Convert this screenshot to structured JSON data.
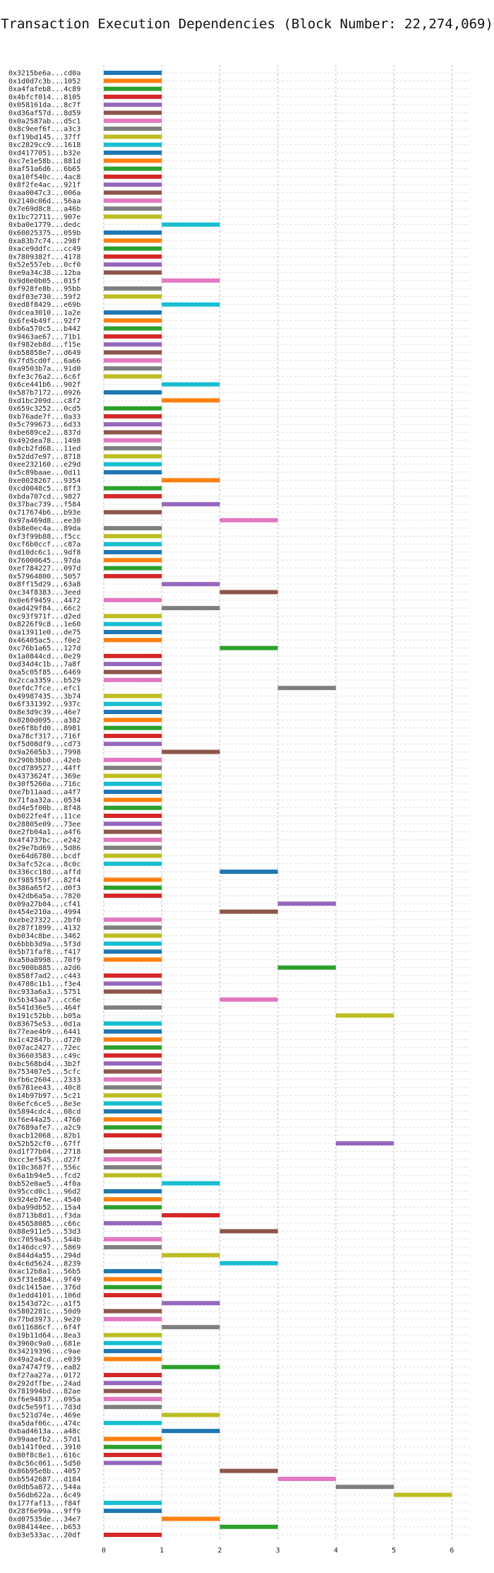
{
  "chart_data": {
    "type": "bar",
    "orientation": "horizontal",
    "title": "Transaction Execution Dependencies (Block Number: 22,274,069)",
    "xlabel": "",
    "ylabel": "",
    "xlim": [
      0,
      6.3
    ],
    "xticks": [
      0,
      1,
      2,
      3,
      4,
      5,
      6
    ],
    "grid": true,
    "legend": false,
    "palette": [
      "#1f77b4",
      "#ff7f0e",
      "#2ca02c",
      "#d62728",
      "#9467bd",
      "#8c564b",
      "#e377c2",
      "#7f7f7f",
      "#bcbd22",
      "#17becf"
    ],
    "transactions": [
      {
        "label": "0x3215be6a...cd0a",
        "start": 0,
        "end": 1
      },
      {
        "label": "0x1d0d7c3b...1052",
        "start": 0,
        "end": 1
      },
      {
        "label": "0xa4fafeb8...4c89",
        "start": 0,
        "end": 1
      },
      {
        "label": "0x4bfcf014...8105",
        "start": 0,
        "end": 1
      },
      {
        "label": "0x058161da...8c7f",
        "start": 0,
        "end": 1
      },
      {
        "label": "0xd36af57d...8d59",
        "start": 0,
        "end": 1
      },
      {
        "label": "0x0a2587ab...d5c1",
        "start": 0,
        "end": 1
      },
      {
        "label": "0x8c9eef6f...a3c3",
        "start": 0,
        "end": 1
      },
      {
        "label": "0xf19bd145...37ff",
        "start": 0,
        "end": 1
      },
      {
        "label": "0xc2829cc9...1618",
        "start": 0,
        "end": 1
      },
      {
        "label": "0xd4177051...b32e",
        "start": 0,
        "end": 1
      },
      {
        "label": "0xc7e1e58b...881d",
        "start": 0,
        "end": 1
      },
      {
        "label": "0xaf51a6d6...6b65",
        "start": 0,
        "end": 1
      },
      {
        "label": "0xa10f540c...4ac8",
        "start": 0,
        "end": 1
      },
      {
        "label": "0x8f2fe4ac...921f",
        "start": 0,
        "end": 1
      },
      {
        "label": "0xaa0047c3...006a",
        "start": 0,
        "end": 1
      },
      {
        "label": "0x2140c06d...56aa",
        "start": 0,
        "end": 1
      },
      {
        "label": "0x7e69d8c8...a46b",
        "start": 0,
        "end": 1
      },
      {
        "label": "0x1bc72711...907e",
        "start": 0,
        "end": 1
      },
      {
        "label": "0xba0e1779...dedc",
        "start": 1,
        "end": 2
      },
      {
        "label": "0x60025375...059b",
        "start": 0,
        "end": 1
      },
      {
        "label": "0xa83b7c74...298f",
        "start": 0,
        "end": 1
      },
      {
        "label": "0xace9ddfc...cc49",
        "start": 0,
        "end": 1
      },
      {
        "label": "0x7809382f...4178",
        "start": 0,
        "end": 1
      },
      {
        "label": "0x52e557eb...0cf0",
        "start": 0,
        "end": 1
      },
      {
        "label": "0xe9a34c38...12ba",
        "start": 0,
        "end": 1
      },
      {
        "label": "0x9d0e0b05...015f",
        "start": 1,
        "end": 2
      },
      {
        "label": "0xf928fe8b...95bb",
        "start": 0,
        "end": 1
      },
      {
        "label": "0xdf03e730...59f2",
        "start": 0,
        "end": 1
      },
      {
        "label": "0xed8f8429...e69b",
        "start": 1,
        "end": 2
      },
      {
        "label": "0xdcea3010...1a2e",
        "start": 0,
        "end": 1
      },
      {
        "label": "0x6fe4b49f...92f7",
        "start": 0,
        "end": 1
      },
      {
        "label": "0xb6a570c5...b442",
        "start": 0,
        "end": 1
      },
      {
        "label": "0x9463ae67...71b1",
        "start": 0,
        "end": 1
      },
      {
        "label": "0xf982eb8d...f15e",
        "start": 0,
        "end": 1
      },
      {
        "label": "0xb58858e7...d649",
        "start": 0,
        "end": 1
      },
      {
        "label": "0x7fd5cd0f...6a66",
        "start": 0,
        "end": 1
      },
      {
        "label": "0xa9503b7a...91d0",
        "start": 0,
        "end": 1
      },
      {
        "label": "0xfe3c76a2...6c6f",
        "start": 0,
        "end": 1
      },
      {
        "label": "0x6ce441b6...902f",
        "start": 1,
        "end": 2
      },
      {
        "label": "0x587b7172...0926",
        "start": 0,
        "end": 1
      },
      {
        "label": "0xd1bc209d...c8f2",
        "start": 1,
        "end": 2
      },
      {
        "label": "0x659c3252...0cd5",
        "start": 0,
        "end": 1
      },
      {
        "label": "0xb76ade7f...0a33",
        "start": 0,
        "end": 1
      },
      {
        "label": "0x5c799673...6d33",
        "start": 0,
        "end": 1
      },
      {
        "label": "0xbe689ce2...837d",
        "start": 0,
        "end": 1
      },
      {
        "label": "0x492dea78...1498",
        "start": 0,
        "end": 1
      },
      {
        "label": "0x8cb2fd68...11ed",
        "start": 0,
        "end": 1
      },
      {
        "label": "0x52dd7e97...8718",
        "start": 0,
        "end": 1
      },
      {
        "label": "0xee232160...e29d",
        "start": 0,
        "end": 1
      },
      {
        "label": "0x5c89baae...0d11",
        "start": 0,
        "end": 1
      },
      {
        "label": "0xe0028267...9354",
        "start": 1,
        "end": 2
      },
      {
        "label": "0xcd0048c5...8ff3",
        "start": 0,
        "end": 1
      },
      {
        "label": "0xbda707cd...9827",
        "start": 0,
        "end": 1
      },
      {
        "label": "0x37bac739...f584",
        "start": 1,
        "end": 2
      },
      {
        "label": "0x717674b6...b93e",
        "start": 0,
        "end": 1
      },
      {
        "label": "0x97a469d8...ee30",
        "start": 2,
        "end": 3
      },
      {
        "label": "0xb8e0ec4a...89da",
        "start": 0,
        "end": 1
      },
      {
        "label": "0xf3f99b88...f5cc",
        "start": 0,
        "end": 1
      },
      {
        "label": "0xcf6b0ccf...c87a",
        "start": 0,
        "end": 1
      },
      {
        "label": "0xd10dc6c1...9df8",
        "start": 0,
        "end": 1
      },
      {
        "label": "0x76000645...97da",
        "start": 0,
        "end": 1
      },
      {
        "label": "0xef784227...097d",
        "start": 0,
        "end": 1
      },
      {
        "label": "0x57964800...5057",
        "start": 0,
        "end": 1
      },
      {
        "label": "0x8ff15d29...63a8",
        "start": 1,
        "end": 2
      },
      {
        "label": "0xc34f8383...3eed",
        "start": 2,
        "end": 3
      },
      {
        "label": "0x0e6f9459...4472",
        "start": 0,
        "end": 1
      },
      {
        "label": "0xad429f84...66c2",
        "start": 1,
        "end": 2
      },
      {
        "label": "0xc93f971f...d2ed",
        "start": 0,
        "end": 1
      },
      {
        "label": "0x8226f9c8...1e60",
        "start": 0,
        "end": 1
      },
      {
        "label": "0xa13911e0...de75",
        "start": 0,
        "end": 1
      },
      {
        "label": "0x46405ac5...f0e2",
        "start": 0,
        "end": 1
      },
      {
        "label": "0xc76b1a65...127d",
        "start": 2,
        "end": 3
      },
      {
        "label": "0x1a0844cd...0e29",
        "start": 0,
        "end": 1
      },
      {
        "label": "0xd34d4c1b...7a8f",
        "start": 0,
        "end": 1
      },
      {
        "label": "0xa5c05f85...6469",
        "start": 0,
        "end": 1
      },
      {
        "label": "0x2cca3359...b529",
        "start": 0,
        "end": 1
      },
      {
        "label": "0xefdc7fce...efc1",
        "start": 3,
        "end": 4
      },
      {
        "label": "0x49987435...3b74",
        "start": 0,
        "end": 1
      },
      {
        "label": "0x6f331392...937c",
        "start": 0,
        "end": 1
      },
      {
        "label": "0x8e3d9c39...46e7",
        "start": 0,
        "end": 1
      },
      {
        "label": "0x8280d095...a382",
        "start": 0,
        "end": 1
      },
      {
        "label": "0xe6f8bfd0...8981",
        "start": 0,
        "end": 1
      },
      {
        "label": "0xa78cf317...716f",
        "start": 0,
        "end": 1
      },
      {
        "label": "0xf5d08df9...cd73",
        "start": 0,
        "end": 1
      },
      {
        "label": "0x9a2605b3...7998",
        "start": 1,
        "end": 2
      },
      {
        "label": "0x290b3bb0...42eb",
        "start": 0,
        "end": 1
      },
      {
        "label": "0xcd789527...44ff",
        "start": 0,
        "end": 1
      },
      {
        "label": "0x4373624f...369e",
        "start": 0,
        "end": 1
      },
      {
        "label": "0x30f5260a...716c",
        "start": 0,
        "end": 1
      },
      {
        "label": "0xe7b11aad...a4f7",
        "start": 0,
        "end": 1
      },
      {
        "label": "0x71faa32a...0534",
        "start": 0,
        "end": 1
      },
      {
        "label": "0xd4e5f00b...8f48",
        "start": 0,
        "end": 1
      },
      {
        "label": "0xb022fe4f...11ce",
        "start": 0,
        "end": 1
      },
      {
        "label": "0x28805e09...73ee",
        "start": 0,
        "end": 1
      },
      {
        "label": "0xe2fb04a1...a4f6",
        "start": 0,
        "end": 1
      },
      {
        "label": "0x4f4737bc...e242",
        "start": 0,
        "end": 1
      },
      {
        "label": "0x29e7bd69...5d86",
        "start": 0,
        "end": 1
      },
      {
        "label": "0xe64d6780...bcdf",
        "start": 0,
        "end": 1
      },
      {
        "label": "0x3afc52ca...8c0c",
        "start": 0,
        "end": 1
      },
      {
        "label": "0x336cc18d...affd",
        "start": 2,
        "end": 3
      },
      {
        "label": "0xf985f59f...82f4",
        "start": 0,
        "end": 1
      },
      {
        "label": "0x386a65f2...d0f3",
        "start": 0,
        "end": 1
      },
      {
        "label": "0x42db6a5a...7820",
        "start": 0,
        "end": 1
      },
      {
        "label": "0x09a27b04...cf41",
        "start": 3,
        "end": 4
      },
      {
        "label": "0x454e210a...4994",
        "start": 2,
        "end": 3
      },
      {
        "label": "0xebe27322...2bf0",
        "start": 0,
        "end": 1
      },
      {
        "label": "0x287f1899...4132",
        "start": 0,
        "end": 1
      },
      {
        "label": "0xb034c8be...3462",
        "start": 0,
        "end": 1
      },
      {
        "label": "0x6bbb3d9a...5f3d",
        "start": 0,
        "end": 1
      },
      {
        "label": "0x5b71faf8...f417",
        "start": 0,
        "end": 1
      },
      {
        "label": "0xa50a8998...70f9",
        "start": 0,
        "end": 1
      },
      {
        "label": "0xc900b885...a2d6",
        "start": 3,
        "end": 4
      },
      {
        "label": "0x858f7ad2...c443",
        "start": 0,
        "end": 1
      },
      {
        "label": "0x4708c1b1...f3e4",
        "start": 0,
        "end": 1
      },
      {
        "label": "0xc933a6a3...5751",
        "start": 0,
        "end": 1
      },
      {
        "label": "0x5b345aa7...cc6e",
        "start": 2,
        "end": 3
      },
      {
        "label": "0x541d36e5...464f",
        "start": 0,
        "end": 1
      },
      {
        "label": "0x191c52bb...b05a",
        "start": 4,
        "end": 5
      },
      {
        "label": "0x83675e53...0d1a",
        "start": 0,
        "end": 1
      },
      {
        "label": "0x77eae4b9...6441",
        "start": 0,
        "end": 1
      },
      {
        "label": "0x1c42847b...d720",
        "start": 0,
        "end": 1
      },
      {
        "label": "0x07ac2427...72ec",
        "start": 0,
        "end": 1
      },
      {
        "label": "0x36603583...c49c",
        "start": 0,
        "end": 1
      },
      {
        "label": "0xbc568bd4...3b2f",
        "start": 0,
        "end": 1
      },
      {
        "label": "0x753407e5...5cfc",
        "start": 0,
        "end": 1
      },
      {
        "label": "0xfb6c2604...2333",
        "start": 0,
        "end": 1
      },
      {
        "label": "0x6781ee43...40c8",
        "start": 0,
        "end": 1
      },
      {
        "label": "0x14b97b97...5c21",
        "start": 0,
        "end": 1
      },
      {
        "label": "0x6efc6ce5...8e3e",
        "start": 0,
        "end": 1
      },
      {
        "label": "0x5894cdc4...08cd",
        "start": 0,
        "end": 1
      },
      {
        "label": "0xf6e44a25...4760",
        "start": 0,
        "end": 1
      },
      {
        "label": "0x7689afe7...a2c9",
        "start": 0,
        "end": 1
      },
      {
        "label": "0xacb12068...82b1",
        "start": 0,
        "end": 1
      },
      {
        "label": "0x52b52cf0...67ff",
        "start": 4,
        "end": 5
      },
      {
        "label": "0xd1f77b04...2718",
        "start": 0,
        "end": 1
      },
      {
        "label": "0xcc3ef545...d27f",
        "start": 0,
        "end": 1
      },
      {
        "label": "0x10c3687f...556c",
        "start": 0,
        "end": 1
      },
      {
        "label": "0x6a1b94e5...fcd2",
        "start": 0,
        "end": 1
      },
      {
        "label": "0xb52e0ae5...4f0a",
        "start": 1,
        "end": 2
      },
      {
        "label": "0x95ccd0c1...96d2",
        "start": 0,
        "end": 1
      },
      {
        "label": "0x924eb74e...4540",
        "start": 0,
        "end": 1
      },
      {
        "label": "0xba99db52...15a4",
        "start": 0,
        "end": 1
      },
      {
        "label": "0x8713b8d1...f3da",
        "start": 1,
        "end": 2
      },
      {
        "label": "0x45658085...c66c",
        "start": 0,
        "end": 1
      },
      {
        "label": "0x88e911e5...53d3",
        "start": 2,
        "end": 3
      },
      {
        "label": "0xc7059a45...544b",
        "start": 0,
        "end": 1
      },
      {
        "label": "0x146dcc97...5869",
        "start": 0,
        "end": 1
      },
      {
        "label": "0x844d4a55...294d",
        "start": 1,
        "end": 2
      },
      {
        "label": "0x4c6d5624...8239",
        "start": 2,
        "end": 3
      },
      {
        "label": "0xac12b8a1...56b5",
        "start": 0,
        "end": 1
      },
      {
        "label": "0x5f31e884...9f49",
        "start": 0,
        "end": 1
      },
      {
        "label": "0xdc1415ae...376d",
        "start": 0,
        "end": 1
      },
      {
        "label": "0x1edd4101...106d",
        "start": 0,
        "end": 1
      },
      {
        "label": "0x1543d72c...a1f5",
        "start": 1,
        "end": 2
      },
      {
        "label": "0x5802281c...50d9",
        "start": 0,
        "end": 1
      },
      {
        "label": "0x77bd3973...9e20",
        "start": 0,
        "end": 1
      },
      {
        "label": "0x611686cf...6f4f",
        "start": 1,
        "end": 2
      },
      {
        "label": "0x19b11d64...8ea3",
        "start": 0,
        "end": 1
      },
      {
        "label": "0x3960c9a0...681e",
        "start": 0,
        "end": 1
      },
      {
        "label": "0x34219396...c9ae",
        "start": 0,
        "end": 1
      },
      {
        "label": "0x49a2a4cd...e039",
        "start": 0,
        "end": 1
      },
      {
        "label": "0xa74747f9...ea82",
        "start": 1,
        "end": 2
      },
      {
        "label": "0xf27aa27a...0172",
        "start": 0,
        "end": 1
      },
      {
        "label": "0x292dffbe...24ad",
        "start": 0,
        "end": 1
      },
      {
        "label": "0x781994bd...82ae",
        "start": 0,
        "end": 1
      },
      {
        "label": "0xf6e94837...095a",
        "start": 0,
        "end": 1
      },
      {
        "label": "0xdc5e59f1...7d3d",
        "start": 0,
        "end": 1
      },
      {
        "label": "0xc521d74e...469e",
        "start": 1,
        "end": 2
      },
      {
        "label": "0xa5daf06c...474c",
        "start": 0,
        "end": 1
      },
      {
        "label": "0xbad4613a...a48c",
        "start": 1,
        "end": 2
      },
      {
        "label": "0x99aaefb2...57d1",
        "start": 0,
        "end": 1
      },
      {
        "label": "0xb141f0ed...3910",
        "start": 0,
        "end": 1
      },
      {
        "label": "0x80f8c8e1...616c",
        "start": 0,
        "end": 1
      },
      {
        "label": "0x8c56c061...5d50",
        "start": 0,
        "end": 1
      },
      {
        "label": "0x86b95e8b...4057",
        "start": 2,
        "end": 3
      },
      {
        "label": "0xb5542687...d184",
        "start": 3,
        "end": 4
      },
      {
        "label": "0x0db5a872...544a",
        "start": 4,
        "end": 5
      },
      {
        "label": "0x56db622a...6c49",
        "start": 5,
        "end": 6
      },
      {
        "label": "0x177faf13...f84f",
        "start": 0,
        "end": 1
      },
      {
        "label": "0x28f6e99a...9ff9",
        "start": 0,
        "end": 1
      },
      {
        "label": "0xd07535de...34e7",
        "start": 1,
        "end": 2
      },
      {
        "label": "0x084144ee...b653",
        "start": 2,
        "end": 3
      },
      {
        "label": "0xb3e533ac...20df",
        "start": 0,
        "end": 1
      }
    ]
  }
}
